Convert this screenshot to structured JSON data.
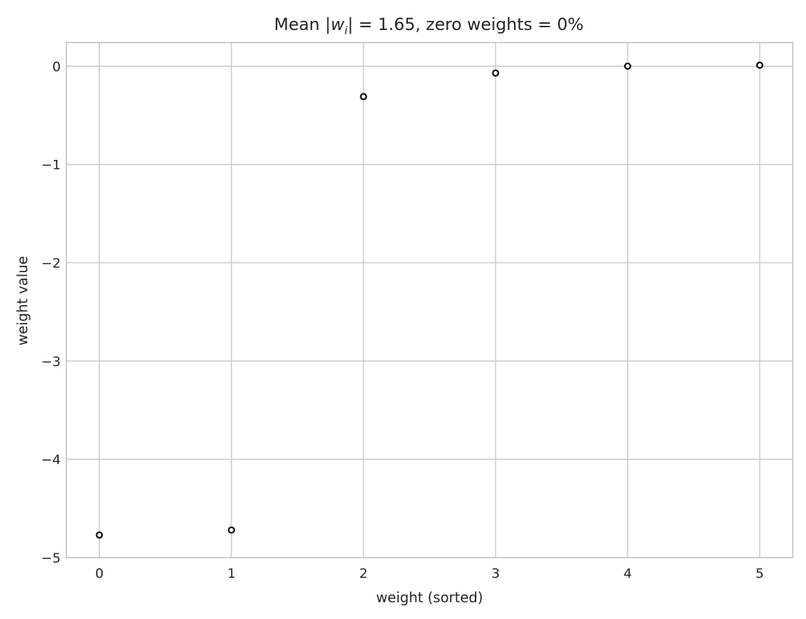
{
  "chart_data": {
    "type": "scatter",
    "title_parts": {
      "prefix": "Mean |",
      "var": "w",
      "sub": "i",
      "suffix": "| = 1.65, zero weights = 0%"
    },
    "xlabel": "weight (sorted)",
    "ylabel": "weight value",
    "x": [
      0,
      1,
      2,
      3,
      4,
      5
    ],
    "y": [
      -4.77,
      -4.72,
      -0.31,
      -0.07,
      0.0,
      0.01
    ],
    "xlim": [
      -0.25,
      5.25
    ],
    "ylim": [
      -5.0,
      0.24
    ],
    "xticks": [
      0,
      1,
      2,
      3,
      4,
      5
    ],
    "xtick_labels": [
      "0",
      "1",
      "2",
      "3",
      "4",
      "5"
    ],
    "yticks": [
      0,
      -1,
      -2,
      -3,
      -4,
      -5
    ],
    "ytick_labels": [
      "0",
      "−1",
      "−2",
      "−3",
      "−4",
      "−5"
    ],
    "grid": true,
    "marker": "open-circle",
    "marker_color": "#000000",
    "grid_color": "#cccccc",
    "text_color": "#262626"
  }
}
